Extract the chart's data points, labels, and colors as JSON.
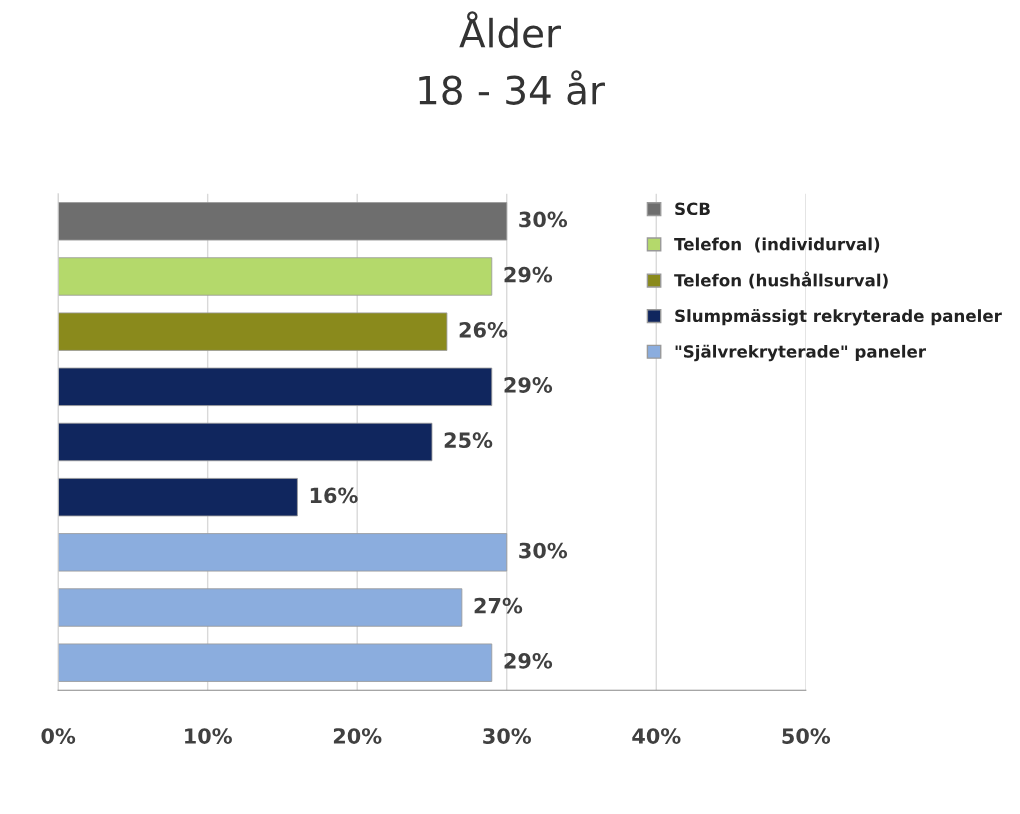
{
  "chart_data": {
    "type": "bar",
    "title": "Ålder",
    "subtitle": "18 - 34 år",
    "orientation": "horizontal",
    "categories": [
      null,
      null,
      null,
      null,
      null,
      null,
      null,
      null,
      null
    ],
    "series": [
      {
        "name": "SCB",
        "color": "#6e6e6e",
        "values": [
          30,
          null,
          null,
          null,
          null,
          null,
          null,
          null,
          null
        ],
        "value_labels": [
          "30%",
          null,
          null,
          null,
          null,
          null,
          null,
          null,
          null
        ]
      },
      {
        "name": "Telefon  (individurval)",
        "color": "#b4d96b",
        "values": [
          null,
          29,
          null,
          null,
          null,
          null,
          null,
          null,
          null
        ],
        "value_labels": [
          null,
          "29%",
          null,
          null,
          null,
          null,
          null,
          null,
          null
        ]
      },
      {
        "name": "Telefon (hushållsurval)",
        "color": "#8a8a1c",
        "values": [
          null,
          null,
          26,
          null,
          null,
          null,
          null,
          null,
          null
        ],
        "value_labels": [
          null,
          null,
          "26%",
          null,
          null,
          null,
          null,
          null,
          null
        ]
      },
      {
        "name": "Slumpmässigt rekryterade paneler",
        "color": "#10265e",
        "values": [
          null,
          null,
          null,
          29,
          25,
          16,
          null,
          null,
          null
        ],
        "value_labels": [
          null,
          null,
          null,
          "29%",
          "25%",
          "16%",
          null,
          null,
          null
        ]
      },
      {
        "name": "\"Självrekryterade\" paneler",
        "color": "#8badde",
        "values": [
          null,
          null,
          null,
          null,
          null,
          null,
          30,
          27,
          29
        ],
        "value_labels": [
          null,
          null,
          null,
          null,
          null,
          null,
          "30%",
          "27%",
          "29%"
        ]
      }
    ],
    "xlim": [
      0,
      50
    ],
    "xticks": [
      {
        "value": 0,
        "label": "0%"
      },
      {
        "value": 10,
        "label": "10%"
      },
      {
        "value": 20,
        "label": "20%"
      },
      {
        "value": 30,
        "label": "30%"
      },
      {
        "value": 40,
        "label": "40%"
      },
      {
        "value": 50,
        "label": "50%"
      }
    ],
    "grid": "x",
    "legend": "right"
  }
}
